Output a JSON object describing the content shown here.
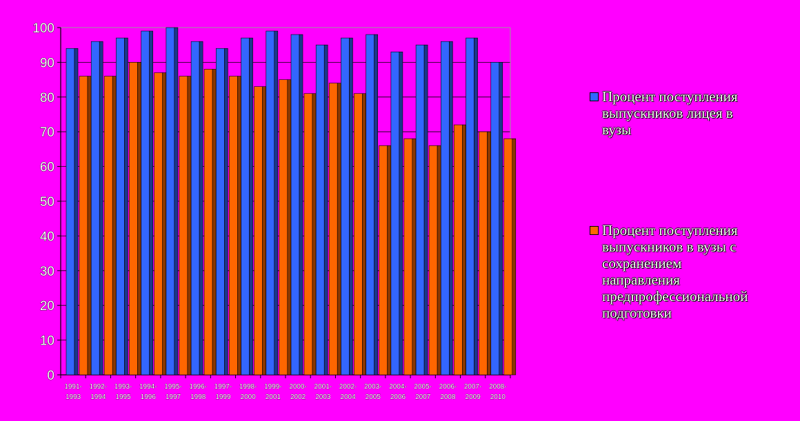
{
  "chart_data": {
    "type": "bar",
    "categories": [
      [
        "1991-",
        "1993"
      ],
      [
        "1992-",
        "1994"
      ],
      [
        "1993-",
        "1995"
      ],
      [
        "1994-",
        "1996"
      ],
      [
        "1995-",
        "1997"
      ],
      [
        "1996-",
        "1998"
      ],
      [
        "1997-",
        "1999"
      ],
      [
        "1998-",
        "2000"
      ],
      [
        "1999-",
        "2001"
      ],
      [
        "2000-",
        "2002"
      ],
      [
        "2001-",
        "2003"
      ],
      [
        "2002-",
        "2004"
      ],
      [
        "2003-",
        "2005"
      ],
      [
        "2004-",
        "2006"
      ],
      [
        "2005-",
        "2007"
      ],
      [
        "2006-",
        "2008"
      ],
      [
        "2007-",
        "2009"
      ],
      [
        "2008-",
        "2010"
      ]
    ],
    "series": [
      {
        "name": "Процент поступления выпускников лицея в вузы",
        "color": "#3366FF",
        "values": [
          94,
          96,
          97,
          99,
          100,
          96,
          94,
          97,
          99,
          98,
          95,
          97,
          98,
          93,
          95,
          96,
          97,
          90
        ]
      },
      {
        "name": "Процент поступления выпускников в вузы с сохранением направления предпрофессиональной подготовки",
        "color": "#FF6600",
        "values": [
          86,
          86,
          90,
          87,
          86,
          88,
          86,
          83,
          85,
          81,
          84,
          81,
          66,
          68,
          66,
          72,
          70,
          68
        ]
      }
    ],
    "y_ticks": [
      "0",
      "10",
      "20",
      "30",
      "40",
      "50",
      "60",
      "70",
      "80",
      "90",
      "100"
    ],
    "ylim": [
      0,
      100
    ],
    "grid": true,
    "legend_position": "right"
  },
  "legend": {
    "items": [
      {
        "lines": [
          "Процент поступления",
          "выпускников лицея в",
          "вузы"
        ]
      },
      {
        "lines": [
          "Процент поступления",
          "выпускников в вузы с",
          "сохранением",
          "направления",
          "предпрофессиональной",
          "подготовки"
        ]
      }
    ]
  }
}
